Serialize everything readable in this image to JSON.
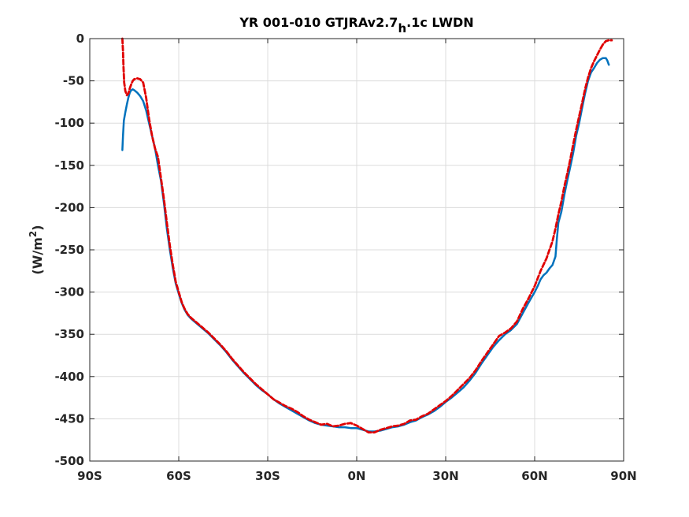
{
  "chart_data": {
    "type": "line",
    "title": {
      "main": "YR 001-010 GTJRAv2.7",
      "subscript": "h",
      "suffix": ".1c LWDN"
    },
    "xlabel": "",
    "ylabel": {
      "prefix": "(W/m",
      "superscript": "2",
      "suffix": ")"
    },
    "xlim": [
      -90,
      90
    ],
    "ylim": [
      -500,
      0
    ],
    "xticks": [
      {
        "value": -90,
        "label": "90S"
      },
      {
        "value": -60,
        "label": "60S"
      },
      {
        "value": -30,
        "label": "30S"
      },
      {
        "value": 0,
        "label": "0N"
      },
      {
        "value": 30,
        "label": "30N"
      },
      {
        "value": 60,
        "label": "60N"
      },
      {
        "value": 90,
        "label": "90N"
      }
    ],
    "yticks": [
      {
        "value": 0,
        "label": "0"
      },
      {
        "value": -50,
        "label": "-50"
      },
      {
        "value": -100,
        "label": "-100"
      },
      {
        "value": -150,
        "label": "-150"
      },
      {
        "value": -200,
        "label": "-200"
      },
      {
        "value": -250,
        "label": "-250"
      },
      {
        "value": -300,
        "label": "-300"
      },
      {
        "value": -350,
        "label": "-350"
      },
      {
        "value": -400,
        "label": "-400"
      },
      {
        "value": -450,
        "label": "-450"
      },
      {
        "value": -500,
        "label": "-500"
      }
    ],
    "grid": true,
    "series": [
      {
        "color": "#0072BD",
        "dash": "solid",
        "points": [
          [
            -79,
            -132
          ],
          [
            -78.8,
            -115
          ],
          [
            -78.5,
            -97
          ],
          [
            -78,
            -87
          ],
          [
            -77.5,
            -78
          ],
          [
            -77,
            -70
          ],
          [
            -76.5,
            -64
          ],
          [
            -76,
            -61
          ],
          [
            -75.5,
            -60
          ],
          [
            -75,
            -61
          ],
          [
            -74,
            -64
          ],
          [
            -73,
            -68
          ],
          [
            -72,
            -74
          ],
          [
            -71,
            -85
          ],
          [
            -70,
            -100
          ],
          [
            -69,
            -115
          ],
          [
            -68,
            -130
          ],
          [
            -67,
            -150
          ],
          [
            -66,
            -168
          ],
          [
            -65,
            -195
          ],
          [
            -64,
            -225
          ],
          [
            -63,
            -250
          ],
          [
            -62,
            -272
          ],
          [
            -61,
            -290
          ],
          [
            -60,
            -302
          ],
          [
            -59,
            -313
          ],
          [
            -58,
            -321
          ],
          [
            -57,
            -327
          ],
          [
            -56,
            -331
          ],
          [
            -55,
            -334
          ],
          [
            -54,
            -337
          ],
          [
            -52,
            -343
          ],
          [
            -50,
            -349
          ],
          [
            -48,
            -356
          ],
          [
            -46,
            -363
          ],
          [
            -44,
            -371
          ],
          [
            -42,
            -380
          ],
          [
            -40,
            -388
          ],
          [
            -38,
            -396
          ],
          [
            -36,
            -403
          ],
          [
            -34,
            -410
          ],
          [
            -32,
            -416
          ],
          [
            -30,
            -421
          ],
          [
            -28,
            -427
          ],
          [
            -26,
            -432
          ],
          [
            -24,
            -436
          ],
          [
            -22,
            -440
          ],
          [
            -20,
            -444
          ],
          [
            -18,
            -448
          ],
          [
            -16,
            -452
          ],
          [
            -14,
            -455
          ],
          [
            -12,
            -457
          ],
          [
            -10,
            -458
          ],
          [
            -8,
            -459
          ],
          [
            -6,
            -460
          ],
          [
            -4,
            -460
          ],
          [
            -2,
            -461
          ],
          [
            0,
            -461
          ],
          [
            2,
            -463
          ],
          [
            4,
            -465
          ],
          [
            6,
            -465
          ],
          [
            8,
            -464
          ],
          [
            10,
            -462
          ],
          [
            12,
            -460
          ],
          [
            14,
            -459
          ],
          [
            16,
            -457
          ],
          [
            18,
            -454
          ],
          [
            20,
            -452
          ],
          [
            22,
            -448
          ],
          [
            24,
            -445
          ],
          [
            26,
            -441
          ],
          [
            28,
            -436
          ],
          [
            30,
            -430
          ],
          [
            32,
            -425
          ],
          [
            34,
            -419
          ],
          [
            36,
            -413
          ],
          [
            38,
            -405
          ],
          [
            40,
            -396
          ],
          [
            42,
            -385
          ],
          [
            44,
            -375
          ],
          [
            46,
            -365
          ],
          [
            48,
            -357
          ],
          [
            50,
            -350
          ],
          [
            52,
            -345
          ],
          [
            54,
            -338
          ],
          [
            56,
            -325
          ],
          [
            58,
            -312
          ],
          [
            60,
            -300
          ],
          [
            61,
            -293
          ],
          [
            62,
            -285
          ],
          [
            63,
            -280
          ],
          [
            64,
            -277
          ],
          [
            65,
            -272
          ],
          [
            66,
            -268
          ],
          [
            67,
            -258
          ],
          [
            67.5,
            -236
          ],
          [
            68,
            -218
          ],
          [
            69,
            -205
          ],
          [
            70,
            -185
          ],
          [
            71,
            -168
          ],
          [
            72,
            -152
          ],
          [
            73,
            -135
          ],
          [
            74,
            -115
          ],
          [
            75,
            -100
          ],
          [
            76,
            -82
          ],
          [
            77,
            -65
          ],
          [
            78,
            -50
          ],
          [
            79,
            -40
          ],
          [
            80,
            -35
          ],
          [
            81,
            -29
          ],
          [
            82,
            -25
          ],
          [
            83,
            -23
          ],
          [
            84,
            -23
          ],
          [
            84.5,
            -26
          ],
          [
            85,
            -31
          ]
        ]
      },
      {
        "color": "#E00000",
        "dash": "dashed",
        "points": [
          [
            -79,
            0
          ],
          [
            -78.8,
            -15
          ],
          [
            -78.6,
            -35
          ],
          [
            -78.4,
            -52
          ],
          [
            -78,
            -62
          ],
          [
            -77.5,
            -67
          ],
          [
            -77,
            -65
          ],
          [
            -76.5,
            -59
          ],
          [
            -76,
            -54
          ],
          [
            -75.5,
            -50
          ],
          [
            -75,
            -48
          ],
          [
            -74,
            -47
          ],
          [
            -73,
            -48
          ],
          [
            -72,
            -52
          ],
          [
            -71,
            -70
          ],
          [
            -70,
            -95
          ],
          [
            -69,
            -115
          ],
          [
            -68,
            -130
          ],
          [
            -67,
            -140
          ],
          [
            -66,
            -165
          ],
          [
            -65,
            -190
          ],
          [
            -64,
            -218
          ],
          [
            -63,
            -245
          ],
          [
            -62,
            -268
          ],
          [
            -61,
            -288
          ],
          [
            -60,
            -300
          ],
          [
            -59,
            -312
          ],
          [
            -58,
            -320
          ],
          [
            -57,
            -326
          ],
          [
            -56,
            -330
          ],
          [
            -55,
            -333
          ],
          [
            -54,
            -336
          ],
          [
            -52,
            -342
          ],
          [
            -50,
            -348
          ],
          [
            -48,
            -355
          ],
          [
            -46,
            -362
          ],
          [
            -44,
            -370
          ],
          [
            -42,
            -379
          ],
          [
            -40,
            -387
          ],
          [
            -38,
            -395
          ],
          [
            -36,
            -402
          ],
          [
            -34,
            -409
          ],
          [
            -32,
            -415
          ],
          [
            -30,
            -421
          ],
          [
            -28,
            -427
          ],
          [
            -26,
            -431
          ],
          [
            -24,
            -435
          ],
          [
            -22,
            -438
          ],
          [
            -20,
            -442
          ],
          [
            -18,
            -447
          ],
          [
            -16,
            -451
          ],
          [
            -14,
            -454
          ],
          [
            -12,
            -457
          ],
          [
            -10,
            -456
          ],
          [
            -8,
            -459
          ],
          [
            -6,
            -458
          ],
          [
            -4,
            -456
          ],
          [
            -2,
            -455
          ],
          [
            0,
            -458
          ],
          [
            2,
            -462
          ],
          [
            4,
            -466
          ],
          [
            6,
            -466
          ],
          [
            8,
            -463
          ],
          [
            10,
            -461
          ],
          [
            12,
            -459
          ],
          [
            14,
            -458
          ],
          [
            16,
            -456
          ],
          [
            18,
            -452
          ],
          [
            20,
            -451
          ],
          [
            22,
            -447
          ],
          [
            24,
            -444
          ],
          [
            26,
            -439
          ],
          [
            28,
            -434
          ],
          [
            30,
            -429
          ],
          [
            32,
            -423
          ],
          [
            34,
            -416
          ],
          [
            36,
            -409
          ],
          [
            38,
            -402
          ],
          [
            40,
            -393
          ],
          [
            42,
            -382
          ],
          [
            44,
            -372
          ],
          [
            46,
            -362
          ],
          [
            48,
            -352
          ],
          [
            50,
            -348
          ],
          [
            52,
            -343
          ],
          [
            54,
            -335
          ],
          [
            56,
            -320
          ],
          [
            58,
            -307
          ],
          [
            60,
            -293
          ],
          [
            62,
            -275
          ],
          [
            64,
            -260
          ],
          [
            65,
            -250
          ],
          [
            66,
            -240
          ],
          [
            67,
            -225
          ],
          [
            68,
            -208
          ],
          [
            69,
            -193
          ],
          [
            70,
            -175
          ],
          [
            71,
            -160
          ],
          [
            72,
            -143
          ],
          [
            73,
            -125
          ],
          [
            74,
            -108
          ],
          [
            75,
            -92
          ],
          [
            76,
            -76
          ],
          [
            77,
            -60
          ],
          [
            78,
            -46
          ],
          [
            79,
            -35
          ],
          [
            80,
            -27
          ],
          [
            81,
            -20
          ],
          [
            82,
            -13
          ],
          [
            83,
            -7
          ],
          [
            84,
            -3
          ],
          [
            85,
            -2
          ],
          [
            86,
            -2
          ]
        ]
      }
    ]
  }
}
